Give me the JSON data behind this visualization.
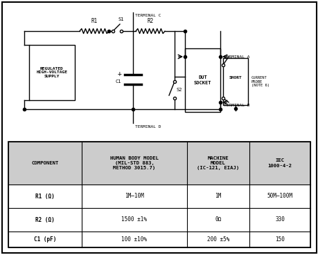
{
  "bg_color": "#ffffff",
  "border_color": "#000000",
  "header_bg": "#cccccc",
  "table": {
    "headers": [
      "COMPONENT",
      "HUMAN BODY MODEL\n(MIL-STD 883,\nMETHOD 3015.7)",
      "MACHINE\nMODEL\n(IC-121, EIAJ)",
      "IEC\n1000-4-2"
    ],
    "rows": [
      [
        "R1 (Ω)",
        "1M–10M",
        "1M",
        "50M–100M"
      ],
      [
        "R2 (Ω)",
        "1500 ±1%",
        "0Ω",
        "330"
      ],
      [
        "C1 (pF)",
        "100 ±10%",
        "200 ±5%",
        "150"
      ]
    ]
  }
}
